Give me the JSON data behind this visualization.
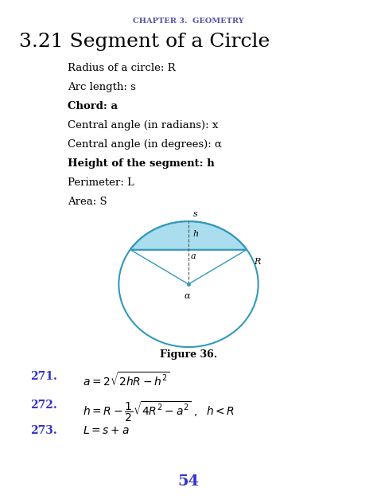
{
  "bg_color": "#ffffff",
  "header_text": "CHAPTER 3.  GEOMETRY",
  "header_color": "#5555aa",
  "header_fontsize": 7,
  "title_text": "3.21 Segment of a Circle",
  "title_fontsize": 18,
  "title_color": "#000000",
  "definitions": [
    "Radius of a circle: R",
    "Arc length: s",
    "Chord: a",
    "Central angle (in radians): x",
    "Central angle (in degrees): α",
    "Height of the segment: h",
    "Perimeter: L",
    "Area: S"
  ],
  "def_fontsize": 9.5,
  "def_bold": [
    false,
    false,
    true,
    false,
    false,
    true,
    false,
    false
  ],
  "figure_caption": "Figure 36.",
  "fig_caption_fontsize": 9,
  "formula_number_color": "#3333cc",
  "formula_number_fontsize": 10,
  "page_number": "54",
  "page_number_color": "#3333cc",
  "page_number_fontsize": 14,
  "circle_color": "#3399bb",
  "circle_fill": "#ffffff",
  "segment_fill": "#aaddee"
}
